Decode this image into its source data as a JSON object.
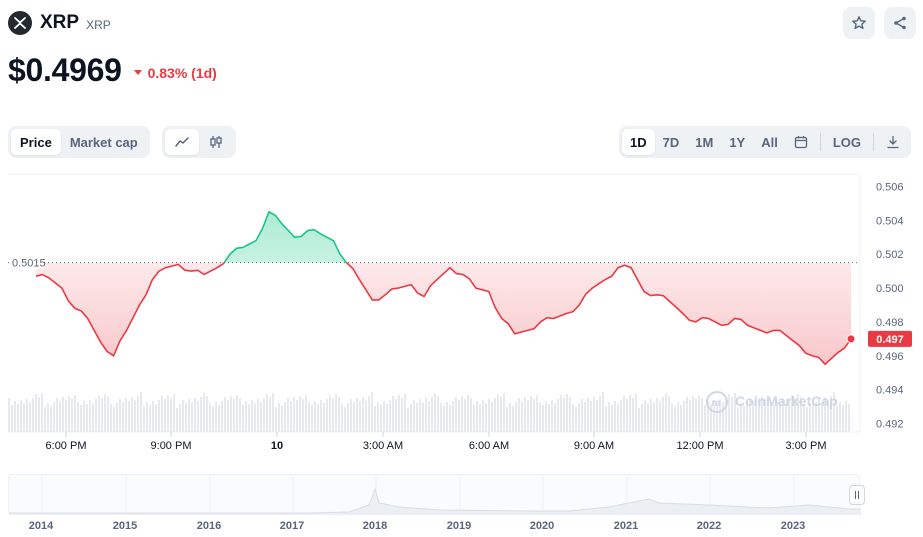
{
  "coin": {
    "name": "XRP",
    "symbol": "XRP",
    "logo_icon": "xrp-logo-icon"
  },
  "price": {
    "value": "$0.4969",
    "change": "0.83% (1d)",
    "direction": "down"
  },
  "actions": {
    "star_icon": "star-icon",
    "share_icon": "share-icon"
  },
  "toolbar": {
    "type_tabs": [
      "Price",
      "Market cap"
    ],
    "active_type": "Price",
    "view_icons": [
      "line-chart-icon",
      "candlestick-icon"
    ],
    "ranges": [
      "1D",
      "7D",
      "1M",
      "1Y",
      "All"
    ],
    "active_range": "1D",
    "calendar_icon": "calendar-icon",
    "log_label": "LOG",
    "download_icon": "download-icon"
  },
  "colors": {
    "up": "#16c784",
    "down": "#ea3943",
    "text": "#0d1421",
    "muted": "#58667e"
  },
  "chart_data": {
    "type": "line",
    "reference_price": "0.5015",
    "current_badge": "0.497",
    "watermark": "CoinMarketCap",
    "x_tick_labels": [
      "6:00 PM",
      "9:00 PM",
      "10",
      "3:00 AM",
      "6:00 AM",
      "9:00 AM",
      "12:00 PM",
      "3:00 PM"
    ],
    "y_tick_labels": [
      "0.506",
      "0.504",
      "0.502",
      "0.500",
      "0.498",
      "0.496",
      "0.494",
      "0.492"
    ],
    "ylim": [
      0.4915,
      0.5065
    ],
    "series": [
      {
        "values": [
          0.5007,
          0.5006,
          0.5,
          0.4988,
          0.4982,
          0.4968,
          0.496,
          0.4975,
          0.499,
          0.5005,
          0.5012,
          0.5014,
          0.501,
          0.5008,
          0.5012,
          0.502,
          0.5024,
          0.5028,
          0.5045,
          0.5038,
          0.503,
          0.5034,
          0.5032,
          0.5028,
          0.5015,
          0.5005,
          0.4993,
          0.4996,
          0.5,
          0.5002,
          0.4995,
          0.5005,
          0.5012,
          0.5008,
          0.5,
          0.4998,
          0.4982,
          0.4973,
          0.4975,
          0.498,
          0.4982,
          0.4985,
          0.499,
          0.5,
          0.5005,
          0.5012,
          0.5012,
          0.4998,
          0.4996,
          0.4992,
          0.4985,
          0.498,
          0.4982,
          0.4978,
          0.4982,
          0.4978,
          0.4975,
          0.4975,
          0.4972,
          0.4966,
          0.496,
          0.4955,
          0.4962,
          0.497
        ]
      }
    ]
  },
  "overview": {
    "years": [
      "2014",
      "2015",
      "2016",
      "2017",
      "2018",
      "2019",
      "2020",
      "2021",
      "2022",
      "2023"
    ],
    "handle_icon": "drag-handle-icon"
  }
}
